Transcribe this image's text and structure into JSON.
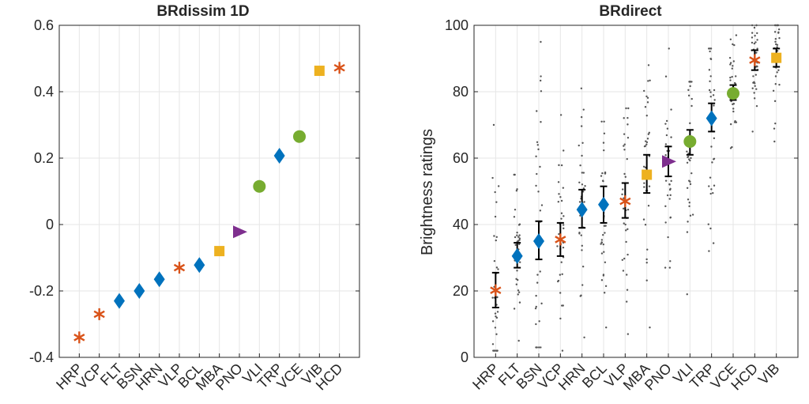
{
  "chart_data": [
    {
      "type": "scatter",
      "title": "BRdissim 1D",
      "xlabel": "",
      "ylabel": "",
      "ylim": [
        -0.4,
        0.6
      ],
      "yticks": [
        -0.4,
        -0.2,
        0,
        0.2,
        0.4,
        0.6
      ],
      "ytick_labels": [
        "-0.4",
        "-0.2",
        "0",
        "0.2",
        "0.4",
        "0.6"
      ],
      "grid": true,
      "categories": [
        "HRP",
        "VCP",
        "FLT",
        "BSN",
        "HRN",
        "VLP",
        "BCL",
        "MBA",
        "PNO",
        "VLI",
        "TRP",
        "VCE",
        "VIB",
        "HCD"
      ],
      "values": [
        -0.34,
        -0.27,
        -0.23,
        -0.2,
        -0.165,
        -0.13,
        -0.122,
        -0.08,
        -0.022,
        0.115,
        0.207,
        0.265,
        0.463,
        0.472
      ],
      "markers": [
        "asterisk",
        "asterisk",
        "diamond",
        "diamond",
        "diamond",
        "asterisk",
        "diamond",
        "square",
        "triangle",
        "circle",
        "diamond",
        "circle",
        "square",
        "asterisk"
      ]
    },
    {
      "type": "scatter",
      "title": "BRdirect",
      "xlabel": "",
      "ylabel": "Brightness ratings",
      "ylim": [
        0,
        100
      ],
      "yticks": [
        0,
        20,
        40,
        60,
        80,
        100
      ],
      "ytick_labels": [
        "0",
        "20",
        "40",
        "60",
        "80",
        "100"
      ],
      "grid": true,
      "categories": [
        "HRP",
        "FLT",
        "BSN",
        "VCP",
        "HRN",
        "BCL",
        "VLP",
        "MBA",
        "PNO",
        "VLI",
        "TRP",
        "VCE",
        "HCD",
        "VIB"
      ],
      "means": [
        20.2,
        30.5,
        35,
        35.5,
        44.5,
        46,
        47,
        55,
        59,
        65,
        72,
        79.5,
        89.5,
        90.2
      ],
      "error_low": [
        15,
        27,
        29.5,
        30.5,
        39,
        40.5,
        42,
        49.5,
        54.5,
        61,
        68,
        77.5,
        86.5,
        87.5
      ],
      "error_high": [
        25.5,
        34.5,
        41,
        40.5,
        50.5,
        51.5,
        52.5,
        61,
        63.5,
        68.5,
        76.5,
        82,
        92.5,
        93
      ],
      "markers": [
        "asterisk",
        "diamond",
        "diamond",
        "asterisk",
        "diamond",
        "diamond",
        "asterisk",
        "square",
        "triangle",
        "circle",
        "diamond",
        "circle",
        "asterisk",
        "square"
      ],
      "ratings_range": [
        [
          2,
          70
        ],
        [
          5,
          55
        ],
        [
          3,
          95
        ],
        [
          2,
          73
        ],
        [
          6,
          81
        ],
        [
          9,
          71
        ],
        [
          7,
          75
        ],
        [
          9,
          88
        ],
        [
          27,
          93
        ],
        [
          19,
          83
        ],
        [
          32,
          93
        ],
        [
          63,
          97
        ],
        [
          68,
          100
        ],
        [
          65,
          100
        ]
      ]
    }
  ],
  "colors": {
    "asterisk": "#d95319",
    "diamond": "#0072bd",
    "square": "#edb120",
    "triangle": "#7e2f8e",
    "circle": "#77ac30",
    "points": "#555555",
    "errorbar": "#000000",
    "grid": "#e6e6e6",
    "axis": "#262626"
  }
}
